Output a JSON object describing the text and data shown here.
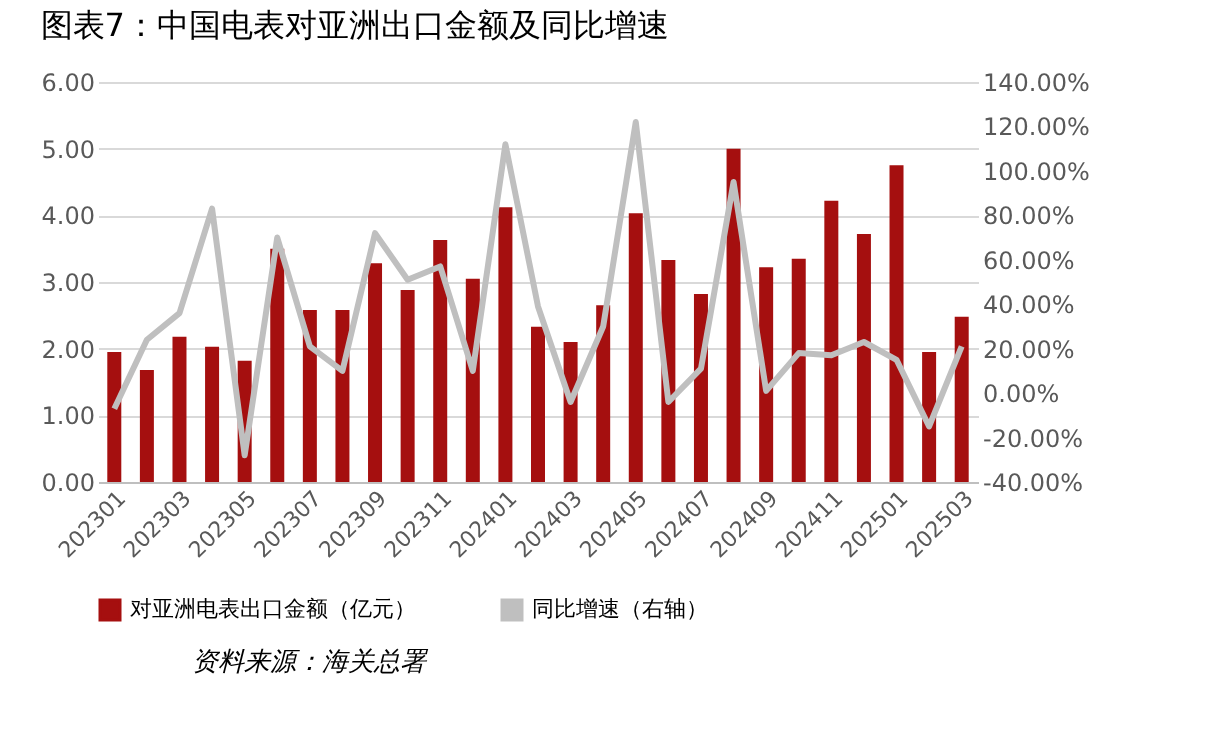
{
  "chart_data": {
    "type": "bar",
    "title": "图表7：中国电表对亚洲出口金额及同比增速",
    "categories": [
      "202301",
      null,
      "202303",
      null,
      "202305",
      null,
      "202307",
      null,
      "202309",
      null,
      "202311",
      null,
      "202401",
      null,
      "202403",
      null,
      "202405",
      null,
      "202407",
      null,
      "202409",
      null,
      "202411",
      null,
      "202501",
      null,
      "202503"
    ],
    "series": [
      {
        "name": "对亚洲电表出口金额（亿元）",
        "color": "#a50f0f",
        "values": [
          1.95,
          1.68,
          2.18,
          2.03,
          1.82,
          3.5,
          2.58,
          2.58,
          3.28,
          2.88,
          3.63,
          3.05,
          4.12,
          2.33,
          2.1,
          2.65,
          4.03,
          3.33,
          2.82,
          5.0,
          3.22,
          3.35,
          4.22,
          3.72,
          4.75,
          1.95,
          2.48
        ]
      },
      {
        "name": "同比增速（右轴）",
        "type": "line",
        "axis": "y2",
        "color": "#bfbfbf",
        "values": [
          -7,
          24,
          36,
          83,
          -28,
          70,
          21,
          10,
          72,
          51,
          57,
          10,
          112,
          39,
          -4,
          30,
          122,
          -4,
          11,
          95,
          1,
          18,
          17,
          23,
          15,
          -15,
          21
        ]
      }
    ],
    "ylim": [
      0,
      6
    ],
    "yticks": [
      {
        "value": 0,
        "label": "0.00"
      },
      {
        "value": 1,
        "label": "1.00"
      },
      {
        "value": 2,
        "label": "2.00"
      },
      {
        "value": 3,
        "label": "3.00"
      },
      {
        "value": 4,
        "label": "4.00"
      },
      {
        "value": 5,
        "label": "5.00"
      },
      {
        "value": 6,
        "label": "6.00"
      }
    ],
    "y2lim": [
      -40,
      140
    ],
    "y2ticks": [
      {
        "value": -40,
        "label": "-40.00%"
      },
      {
        "value": -20,
        "label": "-20.00%"
      },
      {
        "value": 0,
        "label": "0.00%"
      },
      {
        "value": 20,
        "label": "20.00%"
      },
      {
        "value": 40,
        "label": "40.00%"
      },
      {
        "value": 60,
        "label": "60.00%"
      },
      {
        "value": 80,
        "label": "80.00%"
      },
      {
        "value": 100,
        "label": "100.00%"
      },
      {
        "value": 120,
        "label": "120.00%"
      },
      {
        "value": 140,
        "label": "140.00%"
      }
    ],
    "grid": "y",
    "legend": "bottom",
    "marker": "none",
    "line_style": "solid",
    "annotations": [
      "资料来源：海关总署"
    ]
  }
}
